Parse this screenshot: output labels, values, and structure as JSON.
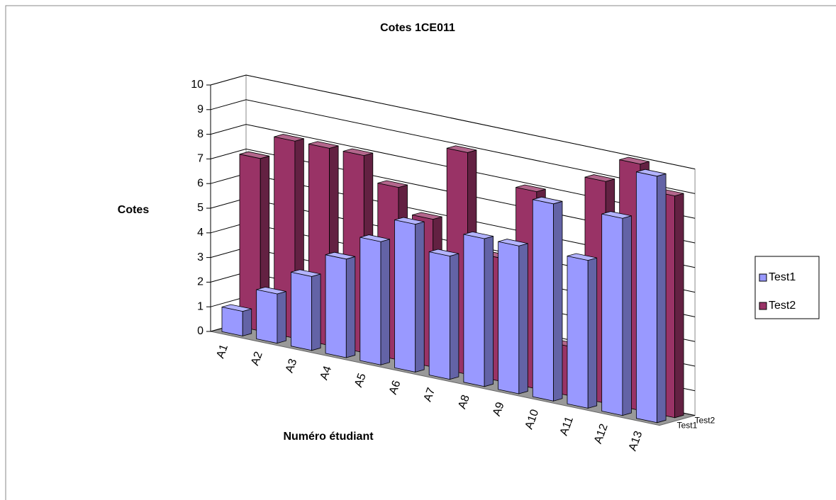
{
  "chart_data": {
    "type": "bar3d",
    "title": "Cotes 1CE011",
    "x_label": "Numéro étudiant",
    "y_label": "Cotes",
    "categories": [
      "A1",
      "A2",
      "A3",
      "A4",
      "A5",
      "A6",
      "A7",
      "A8",
      "A9",
      "A10",
      "A11",
      "A12",
      "A13"
    ],
    "series": [
      {
        "name": "Test1",
        "color": "#9999ff",
        "values": [
          1,
          2,
          3,
          4,
          5,
          6,
          5,
          6,
          6,
          8,
          6,
          8,
          10
        ]
      },
      {
        "name": "Test2",
        "color": "#993366",
        "values": [
          7,
          8,
          8,
          8,
          7,
          6,
          9,
          5,
          8,
          2,
          9,
          10,
          9
        ]
      }
    ],
    "ylim": [
      0,
      10
    ],
    "yticks": [
      0,
      1,
      2,
      3,
      4,
      5,
      6,
      7,
      8,
      9,
      10
    ],
    "grid": true,
    "legend": "right"
  }
}
